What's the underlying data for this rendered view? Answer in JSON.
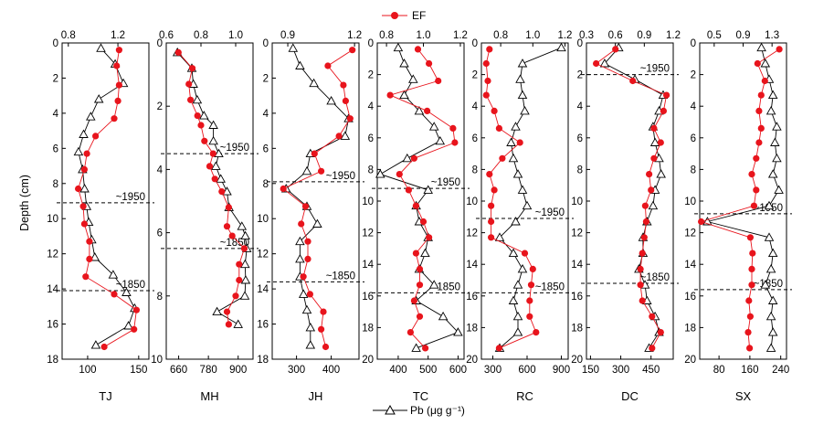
{
  "legend": {
    "ef_label": "EF",
    "pb_label": "Pb (μg g⁻¹)",
    "ef_color": "#e8141c",
    "pb_color": "#000000"
  },
  "y_axis_label": "Depth (cm)",
  "chart_data": [
    {
      "type": "line",
      "panel": "TJ",
      "depth_range": [
        0,
        18
      ],
      "depth_ticks": [
        0,
        2,
        4,
        6,
        8,
        10,
        12,
        14,
        16,
        18
      ],
      "pb_range": [
        75,
        160
      ],
      "pb_ticks": [
        100,
        150
      ],
      "pb_tick_labels": [
        "100",
        "150"
      ],
      "ef_range": [
        0.75,
        1.45
      ],
      "ef_ticks": [
        0.8,
        1.2
      ],
      "ef_tick_labels": [
        "0.8",
        "1.2"
      ],
      "pb": {
        "depth": [
          0.3,
          1.2,
          2.3,
          3.2,
          4.2,
          5.2,
          6.2,
          7.2,
          8.3,
          9.3,
          10.2,
          11.2,
          12.2,
          13.2,
          14.2,
          15.1,
          16.1,
          17.2
        ],
        "values": [
          113,
          127,
          135,
          111,
          103,
          96,
          91,
          95,
          97,
          99,
          101,
          104,
          107,
          125,
          138,
          146,
          140,
          108
        ]
      },
      "ef": {
        "depth": [
          0.4,
          1.3,
          2.4,
          3.3,
          4.3,
          5.3,
          6.3,
          7.2,
          8.3,
          9.3,
          10.3,
          11.3,
          12.3,
          13.3,
          14.3,
          15.2,
          16.3,
          17.3
        ],
        "values": [
          1.21,
          1.19,
          1.21,
          1.2,
          1.17,
          1.02,
          0.95,
          0.93,
          0.88,
          0.92,
          0.93,
          0.97,
          0.97,
          0.94,
          1.17,
          1.35,
          1.33,
          1.09
        ]
      },
      "annotations": [
        {
          "text": "~1950",
          "depth": 9.1
        },
        {
          "text": "~1850",
          "depth": 14.1
        }
      ]
    },
    {
      "type": "line",
      "panel": "MH",
      "depth_range": [
        0,
        10
      ],
      "depth_ticks": [
        0,
        2,
        4,
        6,
        8,
        10
      ],
      "pb_range": [
        610,
        960
      ],
      "pb_ticks": [
        660,
        780,
        900
      ],
      "pb_tick_labels": [
        "660",
        "780",
        "900"
      ],
      "ef_range": [
        0.6,
        1.1
      ],
      "ef_ticks": [
        0.6,
        0.8,
        1.0
      ],
      "ef_tick_labels": [
        "0.6",
        "0.8",
        "1.0"
      ],
      "pb": {
        "depth": [
          0.3,
          0.8,
          1.3,
          1.8,
          2.3,
          2.6,
          3.1,
          3.5,
          3.9,
          4.3,
          4.7,
          5.2,
          5.8,
          6.1,
          6.5,
          7.0,
          7.5,
          8.0,
          8.5,
          8.9
        ],
        "values": [
          655,
          713,
          719,
          735,
          762,
          800,
          800,
          822,
          810,
          830,
          855,
          863,
          915,
          929,
          935,
          928,
          930,
          927,
          815,
          900
        ]
      },
      "ef": {
        "depth": [
          0.3,
          0.8,
          1.3,
          1.8,
          2.3,
          2.6,
          3.1,
          3.5,
          3.9,
          4.3,
          4.7,
          5.2,
          5.8,
          6.1,
          6.5,
          7.0,
          7.5,
          8.0,
          8.5,
          8.9
        ],
        "values": [
          0.67,
          0.75,
          0.73,
          0.74,
          0.78,
          0.8,
          0.82,
          0.87,
          0.85,
          0.88,
          0.92,
          0.96,
          0.95,
          0.98,
          1.05,
          1.02,
          1.02,
          1.0,
          0.95,
          0.96
        ]
      },
      "annotations": [
        {
          "text": "~1950",
          "depth": 3.5
        },
        {
          "text": "~1850",
          "depth": 6.5
        }
      ]
    },
    {
      "type": "line",
      "panel": "JH",
      "depth_range": [
        0,
        18
      ],
      "depth_ticks": [
        0,
        2,
        4,
        6,
        8,
        10,
        12,
        14,
        16,
        18
      ],
      "pb_range": [
        230,
        480
      ],
      "pb_ticks": [
        300,
        400
      ],
      "pb_tick_labels": [
        "300",
        "400"
      ],
      "ef_range": [
        0.83,
        1.22
      ],
      "ef_ticks": [
        0.9,
        1.2
      ],
      "ef_tick_labels": [
        "0.9",
        "1.2"
      ],
      "pb": {
        "depth": [
          0.3,
          1.3,
          2.3,
          3.3,
          4.3,
          5.3,
          6.3,
          7.3,
          8.3,
          9.3,
          10.3,
          11.3,
          12.3,
          13.3,
          14.3,
          15.2,
          16.2,
          17.2
        ],
        "values": [
          290,
          310,
          350,
          400,
          450,
          440,
          340,
          330,
          270,
          330,
          360,
          310,
          310,
          310,
          320,
          330,
          340,
          340
        ]
      },
      "ef": {
        "depth": [
          0.4,
          1.3,
          2.4,
          3.3,
          4.3,
          5.3,
          6.3,
          7.3,
          8.3,
          9.3,
          10.3,
          11.3,
          12.3,
          13.3,
          14.3,
          15.3,
          16.3,
          17.3
        ],
        "values": [
          1.19,
          1.08,
          1.15,
          1.16,
          1.18,
          1.13,
          1.02,
          1.05,
          0.88,
          0.98,
          0.96,
          0.99,
          0.99,
          0.97,
          1.0,
          1.06,
          1.05,
          1.07
        ]
      },
      "annotations": [
        {
          "text": "~1950",
          "depth": 7.9
        },
        {
          "text": "~1850",
          "depth": 13.6
        }
      ]
    },
    {
      "type": "line",
      "panel": "TC",
      "depth_range": [
        0,
        20
      ],
      "depth_ticks": [
        0,
        2,
        4,
        6,
        8,
        10,
        12,
        14,
        16,
        18,
        20
      ],
      "pb_range": [
        330,
        620
      ],
      "pb_ticks": [
        400,
        500,
        600
      ],
      "pb_tick_labels": [
        "400",
        "500",
        "600"
      ],
      "ef_range": [
        0.75,
        1.22
      ],
      "ef_ticks": [
        0.8,
        1.0,
        1.2
      ],
      "ef_tick_labels": [
        "0.8",
        "1.0",
        "1.2"
      ],
      "pb": {
        "depth": [
          0.3,
          1.3,
          2.3,
          3.3,
          4.3,
          5.3,
          6.2,
          7.3,
          8.3,
          9.3,
          10.3,
          11.3,
          12.3,
          13.3,
          14.3,
          15.3,
          16.3,
          17.3,
          18.3,
          19.3
        ],
        "values": [
          400,
          420,
          450,
          420,
          470,
          520,
          540,
          430,
          340,
          500,
          460,
          470,
          500,
          490,
          470,
          520,
          460,
          550,
          600,
          460
        ]
      },
      "ef": {
        "depth": [
          0.4,
          1.3,
          2.4,
          3.3,
          4.3,
          5.4,
          6.3,
          7.3,
          8.3,
          9.3,
          10.3,
          11.3,
          12.3,
          13.3,
          14.3,
          15.3,
          16.3,
          17.3,
          18.3,
          19.3
        ],
        "values": [
          0.97,
          1.03,
          1.08,
          0.82,
          1.02,
          1.16,
          1.17,
          0.95,
          0.87,
          0.92,
          0.96,
          1.0,
          1.03,
          0.96,
          0.98,
          0.98,
          0.95,
          0.98,
          0.93,
          1.01
        ]
      },
      "annotations": [
        {
          "text": "~1950",
          "depth": 9.2
        },
        {
          "text": "~1850",
          "depth": 15.8
        }
      ]
    },
    {
      "type": "line",
      "panel": "RC",
      "depth_range": [
        0,
        20
      ],
      "depth_ticks": [
        0,
        2,
        4,
        6,
        8,
        10,
        12,
        14,
        16,
        18,
        20
      ],
      "pb_range": [
        200,
        960
      ],
      "pb_ticks": [
        300,
        600,
        900
      ],
      "pb_tick_labels": [
        "300",
        "600",
        "900"
      ],
      "ef_range": [
        0.68,
        1.22
      ],
      "ef_ticks": [
        0.8,
        1.0,
        1.2
      ],
      "ef_tick_labels": [
        "0.8",
        "1.0",
        "1.2"
      ],
      "pb": {
        "depth": [
          0.3,
          1.3,
          2.3,
          3.3,
          4.3,
          5.3,
          6.3,
          7.3,
          8.3,
          9.3,
          10.3,
          11.3,
          12.3,
          13.3,
          14.3,
          15.3,
          16.3,
          17.3,
          18.3,
          19.3
        ],
        "values": [
          900,
          560,
          540,
          560,
          580,
          500,
          460,
          480,
          520,
          560,
          600,
          500,
          360,
          480,
          560,
          520,
          480,
          520,
          520,
          360
        ]
      },
      "ef": {
        "depth": [
          0.4,
          1.3,
          2.4,
          3.3,
          4.3,
          5.4,
          6.3,
          7.3,
          8.3,
          9.3,
          10.3,
          11.3,
          12.3,
          13.3,
          14.3,
          15.3,
          16.3,
          17.3,
          18.3,
          19.3
        ],
        "values": [
          0.73,
          0.71,
          0.72,
          0.71,
          0.76,
          0.79,
          0.92,
          0.81,
          0.73,
          0.76,
          0.74,
          0.74,
          0.74,
          0.95,
          1.0,
          0.99,
          0.98,
          0.98,
          1.02,
          0.79
        ]
      },
      "annotations": [
        {
          "text": "~1950",
          "depth": 11.1
        },
        {
          "text": "~1850",
          "depth": 15.8
        }
      ]
    },
    {
      "type": "line",
      "panel": "DC",
      "depth_range": [
        0,
        20
      ],
      "depth_ticks": [
        0,
        2,
        4,
        6,
        8,
        10,
        12,
        14,
        16,
        18,
        20
      ],
      "pb_range": [
        130,
        560
      ],
      "pb_ticks": [
        150,
        300,
        450
      ],
      "pb_tick_labels": [
        "150",
        "300",
        "450"
      ],
      "ef_range": [
        0.3,
        1.2
      ],
      "ef_ticks": [
        0.3,
        0.6,
        0.9,
        1.2
      ],
      "ef_tick_labels": [
        "0.3",
        "0.6",
        "0.9",
        "1.2"
      ],
      "pb": {
        "depth": [
          0.3,
          1.3,
          2.3,
          3.3,
          4.3,
          5.3,
          6.3,
          7.3,
          8.3,
          9.3,
          10.3,
          11.3,
          12.3,
          13.3,
          14.3,
          15.3,
          16.3,
          17.3,
          18.3,
          19.3
        ],
        "values": [
          290,
          220,
          370,
          510,
          490,
          460,
          470,
          490,
          500,
          470,
          460,
          430,
          410,
          410,
          390,
          420,
          430,
          470,
          490,
          440
        ]
      },
      "ef": {
        "depth": [
          0.4,
          1.3,
          2.4,
          3.3,
          4.3,
          5.4,
          6.3,
          7.3,
          8.3,
          9.3,
          10.3,
          11.3,
          12.3,
          13.3,
          14.3,
          15.3,
          16.3,
          17.3,
          18.3,
          19.3
        ],
        "values": [
          0.6,
          0.4,
          0.78,
          1.13,
          1.1,
          1.0,
          1.07,
          1.0,
          0.95,
          0.97,
          0.91,
          0.92,
          0.9,
          0.88,
          0.86,
          0.86,
          0.88,
          0.98,
          1.07,
          0.98
        ]
      },
      "annotations": [
        {
          "text": "~1950",
          "depth": 2.0
        },
        {
          "text": "~1850",
          "depth": 15.2
        }
      ]
    },
    {
      "type": "line",
      "panel": "SX",
      "depth_range": [
        0,
        20
      ],
      "depth_ticks": [
        0,
        2,
        4,
        6,
        8,
        10,
        12,
        14,
        16,
        18,
        20
      ],
      "pb_range": [
        30,
        255
      ],
      "pb_ticks": [
        80,
        160,
        240
      ],
      "pb_tick_labels": [
        "80",
        "160",
        "240"
      ],
      "ef_range": [
        0.3,
        1.5
      ],
      "ef_ticks": [
        0.5,
        0.9,
        1.3
      ],
      "ef_tick_labels": [
        "0.5",
        "0.9",
        "1.3"
      ],
      "pb": {
        "depth": [
          0.3,
          1.3,
          2.3,
          3.3,
          4.3,
          5.3,
          6.3,
          7.3,
          8.3,
          9.3,
          10.3,
          11.3,
          12.3,
          13.3,
          14.3,
          15.3,
          16.3,
          17.3,
          18.3,
          19.3
        ],
        "values": [
          190,
          200,
          210,
          220,
          215,
          230,
          225,
          230,
          220,
          235,
          210,
          50,
          210,
          220,
          215,
          200,
          220,
          215,
          220,
          215
        ]
      },
      "ef": {
        "depth": [
          0.4,
          1.3,
          2.4,
          3.3,
          4.3,
          5.4,
          6.3,
          7.3,
          8.3,
          9.3,
          10.3,
          11.3,
          12.3,
          13.3,
          14.3,
          15.3,
          16.3,
          17.3,
          18.3,
          19.3
        ],
        "values": [
          1.4,
          1.1,
          1.2,
          1.15,
          1.12,
          1.15,
          1.12,
          1.08,
          1.02,
          1.08,
          1.05,
          0.32,
          1.0,
          1.03,
          1.02,
          1.02,
          0.98,
          1.0,
          0.97,
          0.99
        ]
      },
      "annotations": [
        {
          "text": "~1950",
          "depth": 10.8
        },
        {
          "text": "~1850",
          "depth": 15.6
        }
      ]
    }
  ]
}
